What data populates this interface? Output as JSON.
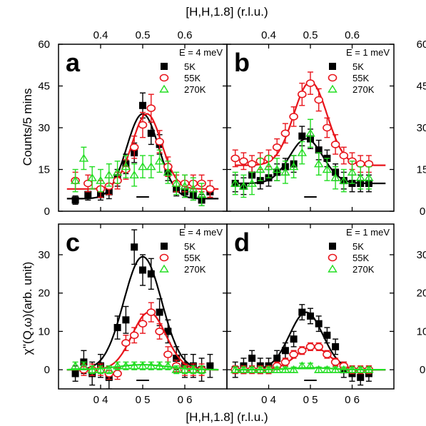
{
  "figure": {
    "top_xlabel": "[H,H,1.8] (r.l.u.)",
    "bottom_xlabel": "[H,H,1.8] (r.l.u.)",
    "top_ylabel": "Counts/5 mins",
    "bottom_ylabel": "χ''(Q,ω)(arb. unit)"
  },
  "chart_data": [
    {
      "type": "scatter",
      "panel": "a",
      "energy_label": "E = 4 meV",
      "xlabel": "[H,H,1.8] (r.l.u.)",
      "ylabel": "Counts/5 mins",
      "xlim": [
        0.3,
        0.7
      ],
      "ylim": [
        0,
        60
      ],
      "x_ticks": [
        "0.4",
        "0.5",
        "0.6"
      ],
      "y_ticks": [
        "0",
        "15",
        "30",
        "45",
        "60"
      ],
      "x_tick_position": "top",
      "y_tick_side": "left",
      "series": [
        {
          "name": "5K",
          "marker": "square",
          "color": "#000000",
          "x": [
            0.34,
            0.37,
            0.4,
            0.42,
            0.44,
            0.46,
            0.48,
            0.5,
            0.52,
            0.54,
            0.56,
            0.58,
            0.6,
            0.62,
            0.64,
            0.66
          ],
          "y": [
            4,
            6,
            6,
            7,
            12,
            17,
            21,
            38,
            28,
            24,
            14,
            8,
            7,
            6,
            4,
            7
          ],
          "err": [
            1.5,
            2,
            2,
            2.5,
            3,
            3.5,
            3.5,
            4.5,
            4,
            3.5,
            3,
            2.5,
            2,
            2,
            2,
            2
          ],
          "fit": {
            "baseline": 4.5,
            "amplitude": 30.5,
            "center": 0.5,
            "sigma": 0.038
          }
        },
        {
          "name": "55K",
          "marker": "circle",
          "color": "#e8141b",
          "x": [
            0.34,
            0.37,
            0.4,
            0.42,
            0.44,
            0.46,
            0.48,
            0.5,
            0.52,
            0.54,
            0.56,
            0.58,
            0.6,
            0.62,
            0.64,
            0.66
          ],
          "y": [
            11,
            10,
            8,
            9,
            11,
            15,
            23,
            31,
            37,
            25,
            16,
            10,
            10,
            10,
            10,
            8
          ],
          "err": [
            3,
            3,
            3,
            3,
            3,
            3.5,
            4,
            4.5,
            5,
            4,
            3.5,
            3,
            3,
            3,
            3,
            3
          ],
          "fit": {
            "baseline": 8,
            "amplitude": 27,
            "center": 0.51,
            "sigma": 0.035
          }
        },
        {
          "name": "270K",
          "marker": "triangle",
          "color": "#22dd22",
          "x": [
            0.34,
            0.36,
            0.38,
            0.4,
            0.42,
            0.44,
            0.46,
            0.48,
            0.5,
            0.52,
            0.54,
            0.56,
            0.58,
            0.6,
            0.62,
            0.64
          ],
          "y": [
            11,
            19,
            12,
            11,
            13,
            14,
            16,
            13,
            16,
            16,
            18,
            14,
            10,
            9,
            8,
            6
          ],
          "err": [
            4,
            4,
            4,
            4,
            4,
            4,
            4,
            4,
            4,
            4,
            4,
            4,
            4,
            4,
            4,
            4
          ]
        }
      ]
    },
    {
      "type": "scatter",
      "panel": "b",
      "energy_label": "E = 1 meV",
      "xlabel": "[H,H,1.8] (r.l.u.)",
      "ylabel": "",
      "xlim": [
        0.3,
        0.7
      ],
      "ylim": [
        0,
        60
      ],
      "x_ticks": [
        "0.4",
        "0.5",
        "0.6"
      ],
      "y_ticks": [
        "0",
        "15",
        "30",
        "45",
        "60"
      ],
      "x_tick_position": "top",
      "y_tick_side": "right",
      "series": [
        {
          "name": "5K",
          "marker": "square",
          "color": "#000000",
          "x": [
            0.32,
            0.34,
            0.36,
            0.38,
            0.4,
            0.42,
            0.44,
            0.46,
            0.48,
            0.5,
            0.52,
            0.54,
            0.56,
            0.58,
            0.6,
            0.62,
            0.64
          ],
          "y": [
            10,
            9,
            13,
            11,
            12,
            14,
            16,
            17,
            27,
            26,
            22,
            19,
            14,
            11,
            10,
            10,
            10
          ],
          "err": [
            3,
            3,
            3,
            3,
            3,
            3,
            3,
            3,
            3.5,
            3.5,
            3.5,
            3,
            3,
            3,
            3,
            3,
            3
          ],
          "fit": {
            "baseline": 10,
            "amplitude": 16,
            "center": 0.49,
            "sigma": 0.04
          }
        },
        {
          "name": "55K",
          "marker": "circle",
          "color": "#e8141b",
          "x": [
            0.32,
            0.34,
            0.36,
            0.38,
            0.4,
            0.42,
            0.44,
            0.46,
            0.48,
            0.5,
            0.52,
            0.54,
            0.56,
            0.58,
            0.6,
            0.62,
            0.64
          ],
          "y": [
            19,
            18,
            17,
            18,
            19,
            23,
            28,
            34,
            42,
            46,
            40,
            30,
            24,
            20,
            18,
            17,
            17
          ],
          "err": [
            3,
            3,
            3,
            3,
            3,
            3,
            3.5,
            3.5,
            4,
            4,
            4,
            3.5,
            3.5,
            3,
            3,
            3,
            3
          ],
          "fit": {
            "baseline": 16.5,
            "amplitude": 30,
            "center": 0.5,
            "sigma": 0.04
          }
        },
        {
          "name": "270K",
          "marker": "triangle",
          "color": "#22dd22",
          "x": [
            0.32,
            0.34,
            0.36,
            0.38,
            0.4,
            0.42,
            0.44,
            0.46,
            0.48,
            0.5,
            0.52,
            0.54,
            0.56,
            0.58,
            0.6,
            0.62,
            0.64
          ],
          "y": [
            10,
            9,
            10,
            15,
            16,
            15,
            14,
            16,
            21,
            28,
            17,
            15,
            12,
            11,
            14,
            12,
            12
          ],
          "err": [
            4,
            4,
            4,
            4,
            4,
            4,
            4,
            4,
            4,
            5,
            4,
            4,
            4,
            4,
            4,
            4,
            4
          ]
        }
      ]
    },
    {
      "type": "scatter",
      "panel": "c",
      "energy_label": "E = 4 meV",
      "xlabel": "[H,H,1.8] (r.l.u.)",
      "ylabel": "χ''(Q,ω)(arb. unit)",
      "xlim": [
        0.3,
        0.7
      ],
      "ylim": [
        -5,
        38
      ],
      "x_ticks": [
        "0 4",
        "0 5",
        "0 6"
      ],
      "y_ticks": [
        "0",
        "10",
        "20",
        "30"
      ],
      "x_tick_position": "bottom",
      "y_tick_side": "left",
      "series": [
        {
          "name": "5K",
          "marker": "square",
          "color": "#000000",
          "x": [
            0.34,
            0.36,
            0.38,
            0.4,
            0.42,
            0.44,
            0.46,
            0.48,
            0.5,
            0.52,
            0.54,
            0.56,
            0.58,
            0.6,
            0.62,
            0.64,
            0.66
          ],
          "y": [
            -1,
            2,
            -1,
            1,
            -2,
            11,
            13,
            32,
            26,
            25,
            15,
            10,
            3,
            1,
            1,
            0,
            1
          ],
          "err": [
            2,
            3,
            3,
            3,
            3,
            3,
            3.5,
            4.5,
            4,
            4,
            3.5,
            3,
            3,
            3,
            3,
            3,
            3
          ],
          "fit": {
            "baseline": 0,
            "amplitude": 29.5,
            "center": 0.5,
            "sigma": 0.045
          }
        },
        {
          "name": "55K",
          "marker": "circle",
          "color": "#e8141b",
          "x": [
            0.36,
            0.38,
            0.4,
            0.42,
            0.44,
            0.46,
            0.48,
            0.5,
            0.52,
            0.54,
            0.56,
            0.58,
            0.6,
            0.62,
            0.64
          ],
          "y": [
            0,
            0,
            0,
            -1,
            -1,
            7,
            9,
            12,
            15,
            10,
            4,
            1,
            0,
            0,
            0
          ],
          "err": [
            1.5,
            1.5,
            1.5,
            1.5,
            1.5,
            2,
            2,
            2.5,
            2.5,
            2,
            2,
            1.5,
            1.5,
            1.5,
            1.5
          ],
          "fit": {
            "baseline": 0,
            "amplitude": 15,
            "center": 0.515,
            "sigma": 0.04
          }
        },
        {
          "name": "270K",
          "marker": "triangle",
          "color": "#22dd22",
          "x": [
            0.34,
            0.36,
            0.38,
            0.4,
            0.42,
            0.44,
            0.46,
            0.48,
            0.5,
            0.52,
            0.54,
            0.56,
            0.58,
            0.6,
            0.62,
            0.64
          ],
          "y": [
            1,
            1,
            0,
            0,
            0,
            1,
            1,
            1,
            1,
            1,
            1,
            1,
            0,
            0,
            0,
            0
          ],
          "err": [
            1,
            1,
            1,
            1,
            1,
            1,
            1,
            1,
            1,
            1,
            1,
            1,
            1,
            1,
            1,
            1
          ],
          "fit": {
            "baseline": 0,
            "amplitude": 1.3,
            "center": 0.5,
            "sigma": 0.06
          }
        }
      ]
    },
    {
      "type": "scatter",
      "panel": "d",
      "energy_label": "E = 1 meV",
      "xlabel": "[H,H,1.8] (r.l.u.)",
      "ylabel": "",
      "xlim": [
        0.3,
        0.7
      ],
      "ylim": [
        -5,
        38
      ],
      "x_ticks": [
        "0 4",
        "0 5",
        "0 6"
      ],
      "y_ticks": [
        "0",
        "10",
        "20",
        "30"
      ],
      "x_tick_position": "bottom",
      "y_tick_side": "right",
      "series": [
        {
          "name": "5K",
          "marker": "square",
          "color": "#000000",
          "x": [
            0.32,
            0.34,
            0.36,
            0.38,
            0.4,
            0.42,
            0.44,
            0.46,
            0.48,
            0.5,
            0.52,
            0.54,
            0.56,
            0.58,
            0.6,
            0.62,
            0.64
          ],
          "y": [
            0,
            1,
            3,
            1,
            1,
            3,
            5,
            8,
            15,
            14,
            12,
            9,
            6,
            0,
            -1,
            -2,
            -1
          ],
          "err": [
            2,
            2,
            2,
            2,
            2,
            2,
            2,
            2,
            2,
            2,
            2,
            2,
            2,
            2,
            2,
            2,
            2
          ],
          "fit": {
            "baseline": 0,
            "amplitude": 15,
            "center": 0.49,
            "sigma": 0.04
          }
        },
        {
          "name": "55K",
          "marker": "circle",
          "color": "#e8141b",
          "x": [
            0.32,
            0.34,
            0.36,
            0.38,
            0.4,
            0.42,
            0.44,
            0.46,
            0.48,
            0.5,
            0.52,
            0.54,
            0.56,
            0.58,
            0.6,
            0.62,
            0.64
          ],
          "y": [
            0,
            0,
            0,
            0,
            0,
            1,
            2,
            4,
            5,
            6,
            6,
            4,
            2,
            1,
            0,
            0,
            0
          ],
          "err": [
            1,
            1,
            1,
            1,
            1,
            1,
            1,
            1,
            1,
            1,
            1,
            1,
            1,
            1,
            1,
            1,
            1
          ],
          "fit": {
            "baseline": 0,
            "amplitude": 6,
            "center": 0.505,
            "sigma": 0.04
          }
        },
        {
          "name": "270K",
          "marker": "triangle",
          "color": "#22dd22",
          "x": [
            0.32,
            0.34,
            0.36,
            0.38,
            0.4,
            0.42,
            0.44,
            0.46,
            0.48,
            0.5,
            0.52,
            0.54,
            0.56,
            0.58,
            0.6,
            0.62,
            0.64
          ],
          "y": [
            0,
            0,
            0,
            0,
            0,
            0,
            0,
            0,
            1,
            1,
            0,
            0,
            0,
            0,
            0,
            0,
            0
          ],
          "err": [
            0.7,
            0.7,
            0.7,
            0.7,
            0.7,
            0.7,
            0.7,
            0.7,
            0.7,
            0.7,
            0.7,
            0.7,
            0.7,
            0.7,
            0.7,
            0.7,
            0.7
          ],
          "fit": {
            "baseline": 0,
            "amplitude": 0.5,
            "center": 0.5,
            "sigma": 0.05
          }
        }
      ]
    }
  ]
}
